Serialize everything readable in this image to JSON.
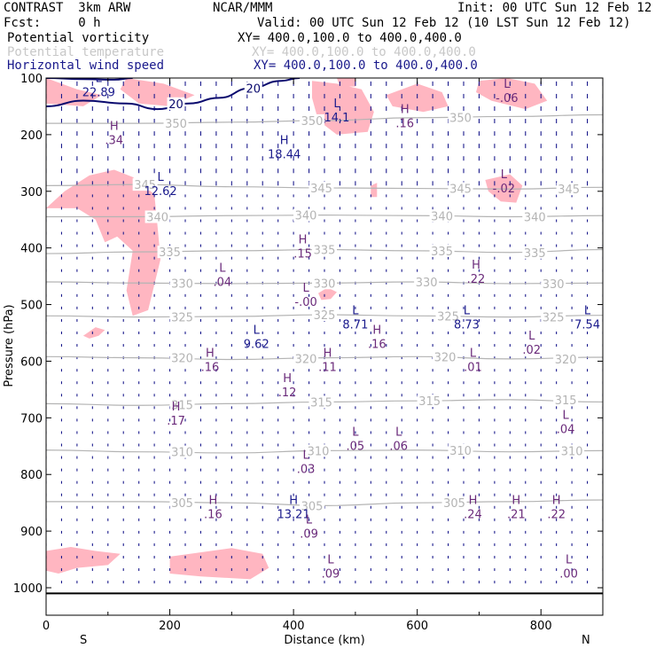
{
  "header": {
    "model": "CONTRAST  3km ARW",
    "org": "NCAR/MMM",
    "init": "Init: 00 UTC Sun 12 Feb 12",
    "fcst": "Fcst:     0 h",
    "valid": "Valid: 00 UTC Sun 12 Feb 12 (10 LST Sun 12 Feb 12)",
    "legend": [
      {
        "label": "Potential vorticity",
        "xy": "XY= 400.0,100.0 to 400.0,400.0",
        "color": "#000000"
      },
      {
        "label": "Potential temperature",
        "xy": "XY= 400.0,100.0 to 400.0,400.0",
        "color": "#c8c8c8"
      },
      {
        "label": "Horizontal wind speed",
        "xy": "XY= 400.0,100.0 to 400.0,400.0",
        "color": "#1a1a8c"
      }
    ]
  },
  "chart_data": {
    "type": "cross-section",
    "xlabel": "Distance (km)",
    "ylabel": "Pressure (hPa)",
    "xlim": [
      0,
      900
    ],
    "ylim": [
      1000,
      100
    ],
    "x_ticks": [
      0,
      200,
      400,
      600,
      800
    ],
    "y_ticks": [
      100,
      200,
      300,
      400,
      500,
      600,
      700,
      800,
      900,
      1000
    ],
    "end_labels": {
      "left": "S",
      "right": "N"
    },
    "colors": {
      "pv_fill": "#ffb6c1",
      "theta": "#b4b4b4",
      "wind": "#1a1a8c",
      "hl_label": "#6a2a7a"
    },
    "theta_contours": [
      {
        "value": 305,
        "points": [
          [
            0,
            848
          ],
          [
            150,
            848
          ],
          [
            300,
            850
          ],
          [
            450,
            855
          ],
          [
            600,
            850
          ],
          [
            750,
            848
          ],
          [
            900,
            845
          ]
        ],
        "labels": [
          [
            220,
            850
          ],
          [
            430,
            855
          ],
          [
            660,
            850
          ]
        ]
      },
      {
        "value": 310,
        "points": [
          [
            0,
            757
          ],
          [
            150,
            760
          ],
          [
            300,
            762
          ],
          [
            450,
            758
          ],
          [
            600,
            757
          ],
          [
            750,
            760
          ],
          [
            900,
            758
          ]
        ],
        "labels": [
          [
            220,
            760
          ],
          [
            440,
            758
          ],
          [
            670,
            757
          ],
          [
            850,
            758
          ]
        ]
      },
      {
        "value": 315,
        "points": [
          [
            0,
            675
          ],
          [
            150,
            678
          ],
          [
            300,
            675
          ],
          [
            450,
            672
          ],
          [
            600,
            670
          ],
          [
            750,
            668
          ],
          [
            900,
            672
          ]
        ],
        "labels": [
          [
            220,
            677
          ],
          [
            445,
            672
          ],
          [
            620,
            670
          ],
          [
            840,
            668
          ]
        ]
      },
      {
        "value": 320,
        "points": [
          [
            0,
            592
          ],
          [
            150,
            594
          ],
          [
            300,
            597
          ],
          [
            450,
            594
          ],
          [
            600,
            592
          ],
          [
            750,
            596
          ],
          [
            900,
            593
          ]
        ],
        "labels": [
          [
            220,
            594
          ],
          [
            420,
            595
          ],
          [
            645,
            592
          ],
          [
            840,
            596
          ]
        ]
      },
      {
        "value": 325,
        "points": [
          [
            0,
            520
          ],
          [
            150,
            522
          ],
          [
            300,
            521
          ],
          [
            450,
            518
          ],
          [
            600,
            520
          ],
          [
            750,
            522
          ],
          [
            900,
            519
          ]
        ],
        "labels": [
          [
            220,
            522
          ],
          [
            450,
            518
          ],
          [
            650,
            520
          ],
          [
            820,
            522
          ]
        ]
      },
      {
        "value": 330,
        "points": [
          [
            0,
            460
          ],
          [
            150,
            462
          ],
          [
            300,
            463
          ],
          [
            450,
            462
          ],
          [
            600,
            460
          ],
          [
            750,
            463
          ],
          [
            900,
            462
          ]
        ],
        "labels": [
          [
            220,
            462
          ],
          [
            450,
            462
          ],
          [
            615,
            460
          ],
          [
            820,
            463
          ]
        ]
      },
      {
        "value": 335,
        "points": [
          [
            0,
            410
          ],
          [
            150,
            407
          ],
          [
            300,
            405
          ],
          [
            450,
            403
          ],
          [
            600,
            405
          ],
          [
            750,
            408
          ],
          [
            900,
            403
          ]
        ],
        "labels": [
          [
            200,
            407
          ],
          [
            450,
            403
          ],
          [
            640,
            405
          ],
          [
            790,
            408
          ]
        ]
      },
      {
        "value": 340,
        "points": [
          [
            0,
            345
          ],
          [
            150,
            345
          ],
          [
            300,
            343
          ],
          [
            450,
            342
          ],
          [
            600,
            343
          ],
          [
            750,
            345
          ],
          [
            900,
            343
          ]
        ],
        "labels": [
          [
            180,
            345
          ],
          [
            420,
            342
          ],
          [
            640,
            343
          ],
          [
            790,
            345
          ]
        ]
      },
      {
        "value": 345,
        "points": [
          [
            0,
            290
          ],
          [
            150,
            288
          ],
          [
            300,
            292
          ],
          [
            450,
            294
          ],
          [
            600,
            295
          ],
          [
            750,
            296
          ],
          [
            900,
            293
          ]
        ],
        "labels": [
          [
            160,
            288
          ],
          [
            445,
            294
          ],
          [
            670,
            295
          ],
          [
            845,
            296
          ]
        ]
      },
      {
        "value": 350,
        "points": [
          [
            0,
            180
          ],
          [
            150,
            180
          ],
          [
            300,
            178
          ],
          [
            450,
            175
          ],
          [
            600,
            170
          ],
          [
            750,
            168
          ],
          [
            900,
            165
          ]
        ],
        "labels": [
          [
            210,
            180
          ],
          [
            430,
            175
          ],
          [
            670,
            170
          ]
        ]
      }
    ],
    "wind_contours": [
      {
        "value": 20,
        "points": [
          [
            0,
            150
          ],
          [
            60,
            140
          ],
          [
            130,
            145
          ],
          [
            180,
            155
          ],
          [
            230,
            145
          ],
          [
            280,
            135
          ],
          [
            330,
            118
          ],
          [
            380,
            105
          ],
          [
            410,
            100
          ]
        ],
        "labels": [
          [
            335,
            118
          ],
          [
            210,
            145
          ]
        ]
      },
      {
        "value": 20,
        "points": [
          [
            0,
            100
          ],
          [
            60,
            102
          ],
          [
            110,
            103
          ],
          [
            140,
            100
          ]
        ],
        "labels": []
      }
    ],
    "pv_regions": [
      [
        [
          130,
          100
        ],
        [
          190,
          110
        ],
        [
          240,
          130
        ],
        [
          200,
          150
        ],
        [
          150,
          145
        ],
        [
          120,
          120
        ]
      ],
      [
        [
          0,
          100
        ],
        [
          50,
          120
        ],
        [
          90,
          130
        ],
        [
          60,
          150
        ],
        [
          0,
          145
        ]
      ],
      [
        [
          430,
          105
        ],
        [
          470,
          110
        ],
        [
          510,
          120
        ],
        [
          530,
          160
        ],
        [
          520,
          195
        ],
        [
          470,
          200
        ],
        [
          440,
          175
        ],
        [
          430,
          135
        ]
      ],
      [
        [
          470,
          100
        ],
        [
          500,
          100
        ],
        [
          500,
          115
        ],
        [
          475,
          115
        ]
      ],
      [
        [
          700,
          105
        ],
        [
          745,
          100
        ],
        [
          790,
          110
        ],
        [
          810,
          140
        ],
        [
          775,
          155
        ],
        [
          720,
          140
        ],
        [
          695,
          125
        ]
      ],
      [
        [
          550,
          130
        ],
        [
          600,
          110
        ],
        [
          640,
          125
        ],
        [
          650,
          150
        ],
        [
          610,
          160
        ],
        [
          560,
          150
        ]
      ],
      [
        [
          0,
          330
        ],
        [
          30,
          300
        ],
        [
          70,
          272
        ],
        [
          110,
          262
        ],
        [
          140,
          275
        ],
        [
          175,
          305
        ],
        [
          180,
          360
        ],
        [
          185,
          420
        ],
        [
          165,
          510
        ],
        [
          140,
          520
        ],
        [
          130,
          475
        ],
        [
          140,
          405
        ],
        [
          115,
          380
        ],
        [
          95,
          390
        ],
        [
          80,
          350
        ],
        [
          50,
          330
        ]
      ],
      [
        [
          60,
          555
        ],
        [
          80,
          540
        ],
        [
          95,
          545
        ],
        [
          85,
          555
        ],
        [
          70,
          560
        ]
      ],
      [
        [
          525,
          290
        ],
        [
          535,
          285
        ],
        [
          535,
          310
        ],
        [
          525,
          310
        ]
      ],
      [
        [
          710,
          280
        ],
        [
          750,
          270
        ],
        [
          770,
          290
        ],
        [
          760,
          320
        ],
        [
          735,
          318
        ],
        [
          715,
          300
        ]
      ],
      [
        [
          440,
          480
        ],
        [
          455,
          470
        ],
        [
          470,
          478
        ],
        [
          460,
          490
        ],
        [
          445,
          492
        ]
      ],
      [
        [
          0,
          935
        ],
        [
          40,
          928
        ],
        [
          80,
          935
        ],
        [
          120,
          940
        ],
        [
          100,
          960
        ],
        [
          50,
          965
        ],
        [
          20,
          975
        ],
        [
          0,
          970
        ]
      ],
      [
        [
          200,
          945
        ],
        [
          300,
          930
        ],
        [
          350,
          940
        ],
        [
          360,
          965
        ],
        [
          330,
          985
        ],
        [
          250,
          980
        ],
        [
          200,
          975
        ]
      ]
    ],
    "extrema": [
      {
        "t": "L",
        "v": "22.89",
        "x": 85,
        "y": 110,
        "c": "wind"
      },
      {
        "t": "L",
        "v": "14.1",
        "x": 470,
        "y": 155,
        "c": "wind"
      },
      {
        "t": "H",
        "v": "18.44",
        "x": 385,
        "y": 220,
        "c": "wind"
      },
      {
        "t": "L",
        "v": "12.62",
        "x": 185,
        "y": 285,
        "c": "wind"
      },
      {
        "t": "L",
        "v": "8.71",
        "x": 500,
        "y": 520,
        "c": "wind"
      },
      {
        "t": "L",
        "v": "8.73",
        "x": 680,
        "y": 520,
        "c": "wind"
      },
      {
        "t": "L",
        "v": "7.54",
        "x": 875,
        "y": 520,
        "c": "wind"
      },
      {
        "t": "L",
        "v": "9.62",
        "x": 340,
        "y": 555,
        "c": "wind"
      },
      {
        "t": "H",
        "v": "13.21",
        "x": 400,
        "y": 855,
        "c": "wind"
      },
      {
        "t": "L",
        "v": "-.06",
        "x": 745,
        "y": 120,
        "c": "pv"
      },
      {
        "t": "H",
        "v": ".16",
        "x": 580,
        "y": 165,
        "c": "pv"
      },
      {
        "t": "H",
        "v": ".34",
        "x": 110,
        "y": 195,
        "c": "pv"
      },
      {
        "t": "L",
        "v": "-.02",
        "x": 740,
        "y": 280,
        "c": "pv"
      },
      {
        "t": "H",
        "v": ".15",
        "x": 415,
        "y": 395,
        "c": "pv"
      },
      {
        "t": "H",
        "v": ".22",
        "x": 695,
        "y": 440,
        "c": "pv"
      },
      {
        "t": "L",
        "v": ".04",
        "x": 285,
        "y": 445,
        "c": "pv"
      },
      {
        "t": "L",
        "v": "-.00",
        "x": 420,
        "y": 480,
        "c": "pv"
      },
      {
        "t": "H",
        "v": ".16",
        "x": 535,
        "y": 555,
        "c": "pv"
      },
      {
        "t": "L",
        "v": ".02",
        "x": 785,
        "y": 565,
        "c": "pv"
      },
      {
        "t": "H",
        "v": ".16",
        "x": 265,
        "y": 595,
        "c": "pv"
      },
      {
        "t": "H",
        "v": ".11",
        "x": 455,
        "y": 595,
        "c": "pv"
      },
      {
        "t": "L",
        "v": ".01",
        "x": 690,
        "y": 595,
        "c": "pv"
      },
      {
        "t": "H",
        "v": ".12",
        "x": 390,
        "y": 640,
        "c": "pv"
      },
      {
        "t": "H",
        "v": ".17",
        "x": 210,
        "y": 690,
        "c": "pv"
      },
      {
        "t": "L",
        "v": ".04",
        "x": 840,
        "y": 705,
        "c": "pv"
      },
      {
        "t": "L",
        "v": ".05",
        "x": 500,
        "y": 735,
        "c": "pv"
      },
      {
        "t": "L",
        "v": ".06",
        "x": 570,
        "y": 735,
        "c": "pv"
      },
      {
        "t": "L",
        "v": ".03",
        "x": 420,
        "y": 775,
        "c": "pv"
      },
      {
        "t": "H",
        "v": ".16",
        "x": 270,
        "y": 855,
        "c": "pv"
      },
      {
        "t": "H",
        "v": ".24",
        "x": 690,
        "y": 855,
        "c": "pv"
      },
      {
        "t": "H",
        "v": ".21",
        "x": 760,
        "y": 855,
        "c": "pv"
      },
      {
        "t": "H",
        "v": ".22",
        "x": 825,
        "y": 855,
        "c": "pv"
      },
      {
        "t": "L",
        "v": ".09",
        "x": 425,
        "y": 890,
        "c": "pv"
      },
      {
        "t": "L",
        "v": ".09",
        "x": 460,
        "y": 960,
        "c": "pv"
      },
      {
        "t": "L",
        "v": ".00",
        "x": 845,
        "y": 960,
        "c": "pv"
      }
    ],
    "surface_line_p": 1010
  }
}
